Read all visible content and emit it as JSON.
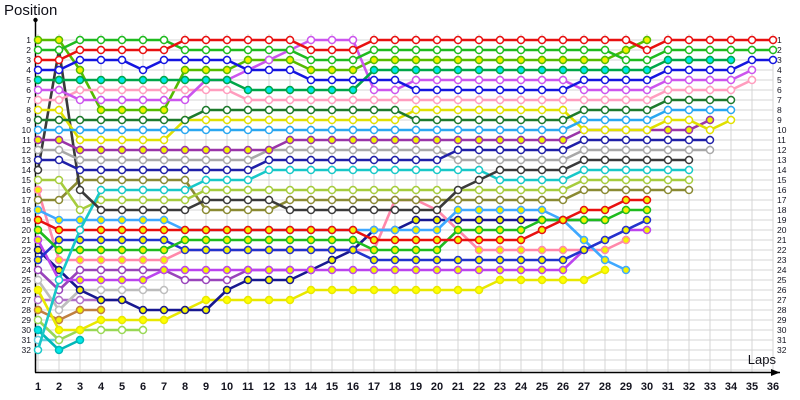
{
  "header": {
    "title": "Position",
    "xlabel": "Laps"
  },
  "axes": {
    "x_ticks": [
      1,
      2,
      3,
      4,
      5,
      6,
      7,
      8,
      9,
      10,
      11,
      12,
      13,
      14,
      15,
      16,
      17,
      18,
      19,
      20,
      21,
      22,
      23,
      24,
      25,
      26,
      27,
      28,
      29,
      30,
      31,
      32,
      33,
      34,
      35,
      36
    ],
    "y_ticks_left": [
      1,
      2,
      3,
      4,
      5,
      6,
      7,
      8,
      9,
      10,
      11,
      12,
      13,
      14,
      15,
      16,
      17,
      18,
      19,
      20,
      21,
      22,
      23,
      24,
      25,
      26,
      27,
      28,
      29,
      30,
      31,
      32
    ],
    "y_ticks_right": [
      1,
      2,
      3,
      4,
      5,
      6,
      7,
      8,
      9,
      10,
      11,
      12,
      13,
      14,
      15,
      16,
      17,
      18,
      19,
      20,
      21,
      22,
      23,
      24,
      25,
      26,
      27,
      28,
      29,
      30,
      31,
      32
    ]
  },
  "style": {
    "grid_color": "#d4d4d4",
    "axis_color": "#000000",
    "tick_color": "#14141f"
  },
  "chart_data": {
    "type": "line",
    "title": "Position",
    "xlabel": "Laps",
    "ylabel": "Position",
    "x_range": [
      1,
      36
    ],
    "ylim": [
      1,
      32
    ],
    "y_inverted": true,
    "grid": true,
    "note": "Race lap chart: one series per car; value = position held at each lap; series end early when car retires or is lapped.",
    "series": [
      {
        "name": "plum-white",
        "line": "#b070c8",
        "fill": "#ffffff",
        "start_lap": 1,
        "positions": [
          27,
          27,
          27,
          27,
          27
        ]
      },
      {
        "name": "aqua-white",
        "line": "#66ccdd",
        "fill": "#ffffff",
        "start_lap": 1,
        "positions": [
          31,
          31
        ]
      },
      {
        "name": "cyan2",
        "line": "#00b8b8",
        "fill": "#00e8e8",
        "start_lap": 1,
        "positions": [
          30,
          32,
          31
        ]
      },
      {
        "name": "lime-white",
        "line": "#99d855",
        "fill": "#ffffff",
        "start_lap": 1,
        "positions": [
          29,
          31,
          30,
          30,
          30,
          30
        ]
      },
      {
        "name": "tan-yf",
        "line": "#c08040",
        "fill": "#f2f200",
        "start_lap": 1,
        "positions": [
          28,
          29,
          28,
          28
        ]
      },
      {
        "name": "silver-white",
        "line": "#bdbdbd",
        "fill": "#ffffff",
        "start_lap": 1,
        "positions": [
          25,
          28,
          26,
          26,
          26,
          26,
          26
        ]
      },
      {
        "name": "white-violet",
        "line": "#9944bb",
        "fill": "#ffffff",
        "start_lap": 1,
        "positions": [
          24,
          26,
          24,
          24,
          24,
          24,
          24,
          25,
          25,
          25,
          24,
          24,
          24
        ]
      },
      {
        "name": "floor-yellow",
        "line": "#e8e800",
        "fill": "#ffff00",
        "start_lap": 1,
        "positions": [
          26,
          30,
          30,
          29,
          29,
          29,
          29,
          28,
          27,
          27,
          27,
          27,
          27,
          26,
          26,
          26,
          26,
          26,
          26,
          26,
          26,
          26,
          25,
          25,
          25,
          25,
          25,
          24
        ]
      },
      {
        "name": "navy-yf",
        "line": "#181890",
        "fill": "#f2f200",
        "start_lap": 1,
        "positions": [
          22,
          24,
          26,
          27,
          27,
          28,
          28,
          28,
          28,
          26,
          25,
          25,
          25,
          24,
          23,
          22,
          20,
          20,
          19,
          19,
          19,
          19,
          19,
          19,
          19,
          19,
          19,
          19
        ]
      },
      {
        "name": "pink-yf",
        "line": "#ff88aa",
        "fill": "#f2f200",
        "start_lap": 1,
        "positions": [
          16,
          23,
          23,
          23,
          23,
          23,
          23,
          22,
          22,
          22,
          22,
          22,
          22,
          22,
          22,
          22,
          22,
          17,
          17,
          18,
          20,
          22,
          22,
          22,
          22,
          22,
          22,
          22,
          21
        ]
      },
      {
        "name": "violet-yf",
        "line": "#bb44ee",
        "fill": "#f2f200",
        "start_lap": 1,
        "positions": [
          21,
          25,
          25,
          25,
          25,
          25,
          24,
          24,
          24,
          24,
          24,
          24,
          24,
          24,
          24,
          24,
          24,
          24,
          24,
          24,
          24,
          24,
          24,
          24,
          24,
          24,
          22,
          21,
          20,
          20
        ]
      },
      {
        "name": "skyblue-yf",
        "line": "#3fa8ff",
        "fill": "#f2f200",
        "start_lap": 1,
        "positions": [
          18,
          19,
          19,
          19,
          19,
          19,
          19,
          20,
          20,
          20,
          20,
          20,
          20,
          20,
          20,
          20,
          20,
          20,
          20,
          20,
          18,
          18,
          18,
          18,
          18,
          19,
          21,
          23,
          24
        ]
      },
      {
        "name": "blue-yf",
        "line": "#2233cc",
        "fill": "#f2f200",
        "start_lap": 1,
        "positions": [
          23,
          21,
          21,
          21,
          21,
          21,
          21,
          22,
          22,
          22,
          22,
          22,
          22,
          22,
          22,
          22,
          23,
          23,
          23,
          23,
          23,
          23,
          23,
          23,
          23,
          23,
          22,
          21,
          20,
          19
        ]
      },
      {
        "name": "green-yf",
        "line": "#1fbb1f",
        "fill": "#f2f200",
        "start_lap": 1,
        "positions": [
          20,
          22,
          22,
          22,
          22,
          22,
          22,
          21,
          21,
          21,
          21,
          21,
          21,
          21,
          21,
          21,
          22,
          22,
          22,
          22,
          20,
          20,
          20,
          20,
          19,
          19,
          19,
          19,
          18,
          18
        ]
      },
      {
        "name": "red-yf",
        "line": "#e81010",
        "fill": "#f2f200",
        "start_lap": 1,
        "positions": [
          19,
          20,
          20,
          20,
          20,
          20,
          20,
          20,
          20,
          20,
          20,
          20,
          20,
          20,
          20,
          20,
          21,
          21,
          21,
          21,
          21,
          21,
          21,
          21,
          20,
          19,
          18,
          18,
          17,
          17
        ]
      },
      {
        "name": "olive",
        "line": "#8a8a33",
        "fill": "#ffffff",
        "start_lap": 1,
        "positions": [
          17,
          17,
          15,
          15,
          15,
          15,
          15,
          15,
          18,
          18,
          18,
          18,
          17,
          17,
          17,
          17,
          17,
          17,
          17,
          17,
          17,
          17,
          17,
          17,
          17,
          17,
          16,
          16,
          16,
          16,
          16,
          16
        ]
      },
      {
        "name": "yellowgreen",
        "line": "#a6cc3d",
        "fill": "#ffffff",
        "start_lap": 1,
        "positions": [
          15,
          15,
          18,
          17,
          17,
          17,
          17,
          17,
          16,
          16,
          16,
          16,
          16,
          16,
          16,
          16,
          16,
          16,
          16,
          16,
          16,
          16,
          16,
          16,
          16,
          16,
          15,
          15,
          15,
          15,
          15,
          15
        ]
      },
      {
        "name": "cyan",
        "line": "#18c8c8",
        "fill": "#ffffff",
        "start_lap": 1,
        "positions": [
          32,
          25,
          20,
          16,
          16,
          16,
          16,
          16,
          15,
          15,
          15,
          14,
          14,
          14,
          14,
          14,
          14,
          14,
          14,
          14,
          14,
          14,
          15,
          15,
          15,
          15,
          14,
          14,
          14,
          14,
          14,
          14
        ]
      },
      {
        "name": "black",
        "line": "#3a3a3a",
        "fill": "#ffffff",
        "start_lap": 1,
        "positions": [
          14,
          2,
          16,
          18,
          18,
          18,
          18,
          18,
          17,
          17,
          17,
          17,
          18,
          18,
          18,
          18,
          18,
          18,
          18,
          18,
          16,
          15,
          14,
          14,
          14,
          14,
          13,
          13,
          13,
          13,
          13,
          13
        ]
      },
      {
        "name": "gray",
        "line": "#a8a8a8",
        "fill": "#ffffff",
        "start_lap": 1,
        "positions": [
          12,
          12,
          13,
          13,
          13,
          13,
          13,
          13,
          13,
          13,
          13,
          12,
          12,
          12,
          12,
          12,
          12,
          12,
          12,
          12,
          13,
          13,
          13,
          13,
          13,
          13,
          12,
          12,
          12,
          12,
          12,
          12,
          12
        ]
      },
      {
        "name": "navy",
        "line": "#2020a8",
        "fill": "#ffffff",
        "start_lap": 1,
        "positions": [
          13,
          13,
          14,
          14,
          14,
          14,
          14,
          14,
          14,
          14,
          14,
          13,
          13,
          13,
          13,
          13,
          13,
          13,
          13,
          13,
          12,
          12,
          12,
          12,
          12,
          12,
          11,
          11,
          11,
          11,
          11,
          11,
          11
        ]
      },
      {
        "name": "purple-yf",
        "line": "#9a35a8",
        "fill": "#f2f200",
        "start_lap": 1,
        "positions": [
          11,
          11,
          12,
          12,
          12,
          12,
          12,
          12,
          12,
          12,
          12,
          12,
          11,
          11,
          11,
          11,
          11,
          11,
          11,
          11,
          11,
          11,
          11,
          11,
          11,
          11,
          10,
          10,
          10,
          10,
          10,
          10,
          9
        ]
      },
      {
        "name": "lemon",
        "line": "#e0e000",
        "fill": "#ffffff",
        "start_lap": 1,
        "positions": [
          8,
          8,
          11,
          11,
          11,
          11,
          11,
          9,
          9,
          9,
          9,
          9,
          9,
          9,
          9,
          9,
          9,
          9,
          8,
          8,
          8,
          8,
          8,
          8,
          8,
          8,
          10,
          10,
          10,
          10,
          9,
          9,
          10,
          9
        ]
      },
      {
        "name": "lightblue",
        "line": "#2aa7f0",
        "fill": "#ffffff",
        "start_lap": 1,
        "positions": [
          10,
          10,
          10,
          10,
          10,
          10,
          10,
          10,
          10,
          10,
          10,
          10,
          10,
          10,
          10,
          10,
          10,
          10,
          10,
          10,
          10,
          10,
          10,
          10,
          10,
          10,
          9,
          9,
          9,
          9,
          8,
          8,
          8,
          8
        ]
      },
      {
        "name": "darkgreen",
        "line": "#1d7a2c",
        "fill": "#ffffff",
        "start_lap": 1,
        "positions": [
          9,
          9,
          9,
          9,
          9,
          9,
          9,
          9,
          8,
          8,
          8,
          8,
          8,
          8,
          8,
          8,
          8,
          8,
          9,
          9,
          9,
          9,
          9,
          9,
          9,
          9,
          8,
          8,
          8,
          8,
          7,
          7,
          7,
          7
        ]
      },
      {
        "name": "chartreuse",
        "line": "#55bb00",
        "fill": "#f2f200",
        "start_lap": 1,
        "positions": [
          1,
          1,
          4,
          8,
          8,
          8,
          8,
          4,
          4,
          4,
          3,
          3,
          3,
          4,
          4,
          4,
          3,
          3,
          3,
          3,
          3,
          3,
          3,
          3,
          3,
          3,
          3,
          3,
          2,
          1
        ]
      },
      {
        "name": "pink",
        "line": "#ff9dbe",
        "fill": "#ffffff",
        "start_lap": 1,
        "positions": [
          7,
          7,
          6,
          6,
          6,
          6,
          6,
          6,
          6,
          6,
          7,
          7,
          7,
          7,
          7,
          7,
          7,
          7,
          7,
          7,
          7,
          7,
          7,
          7,
          7,
          7,
          7,
          7,
          7,
          7,
          6,
          6,
          6,
          6,
          5
        ]
      },
      {
        "name": "magenta",
        "line": "#cc55ee",
        "fill": "#ffffff",
        "start_lap": 1,
        "positions": [
          6,
          6,
          7,
          7,
          7,
          7,
          7,
          7,
          5,
          5,
          4,
          3,
          2,
          1,
          1,
          1,
          6,
          6,
          5,
          5,
          5,
          5,
          5,
          5,
          5,
          5,
          6,
          6,
          6,
          6,
          5,
          5,
          5,
          5,
          4
        ]
      },
      {
        "name": "teal",
        "line": "#00a648",
        "fill": "#00e8e8",
        "start_lap": 1,
        "positions": [
          5,
          5,
          5,
          5,
          5,
          5,
          5,
          5,
          5,
          5,
          6,
          6,
          6,
          6,
          6,
          6,
          4,
          4,
          4,
          4,
          4,
          4,
          4,
          4,
          4,
          4,
          4,
          4,
          4,
          4,
          3,
          3,
          3,
          3
        ]
      },
      {
        "name": "blue",
        "line": "#1515e0",
        "fill": "#ffffff",
        "start_lap": 1,
        "positions": [
          4,
          4,
          3,
          3,
          3,
          4,
          3,
          3,
          3,
          3,
          4,
          4,
          4,
          5,
          5,
          5,
          5,
          5,
          6,
          6,
          6,
          6,
          6,
          6,
          6,
          6,
          5,
          5,
          5,
          5,
          4,
          4,
          4,
          4,
          3,
          3
        ]
      },
      {
        "name": "green",
        "line": "#1fbb1f",
        "fill": "#ffffff",
        "start_lap": 1,
        "positions": [
          2,
          2,
          1,
          1,
          1,
          1,
          1,
          2,
          2,
          2,
          2,
          2,
          2,
          3,
          3,
          3,
          2,
          2,
          2,
          2,
          2,
          2,
          2,
          2,
          2,
          2,
          2,
          2,
          3,
          3,
          2,
          2,
          2,
          2,
          2,
          2
        ]
      },
      {
        "name": "red",
        "line": "#e81010",
        "fill": "#ffffff",
        "start_lap": 1,
        "positions": [
          3,
          3,
          2,
          2,
          2,
          2,
          2,
          1,
          1,
          1,
          1,
          1,
          1,
          2,
          2,
          2,
          1,
          1,
          1,
          1,
          1,
          1,
          1,
          1,
          1,
          1,
          1,
          1,
          1,
          2,
          1,
          1,
          1,
          1,
          1,
          1
        ]
      }
    ]
  }
}
